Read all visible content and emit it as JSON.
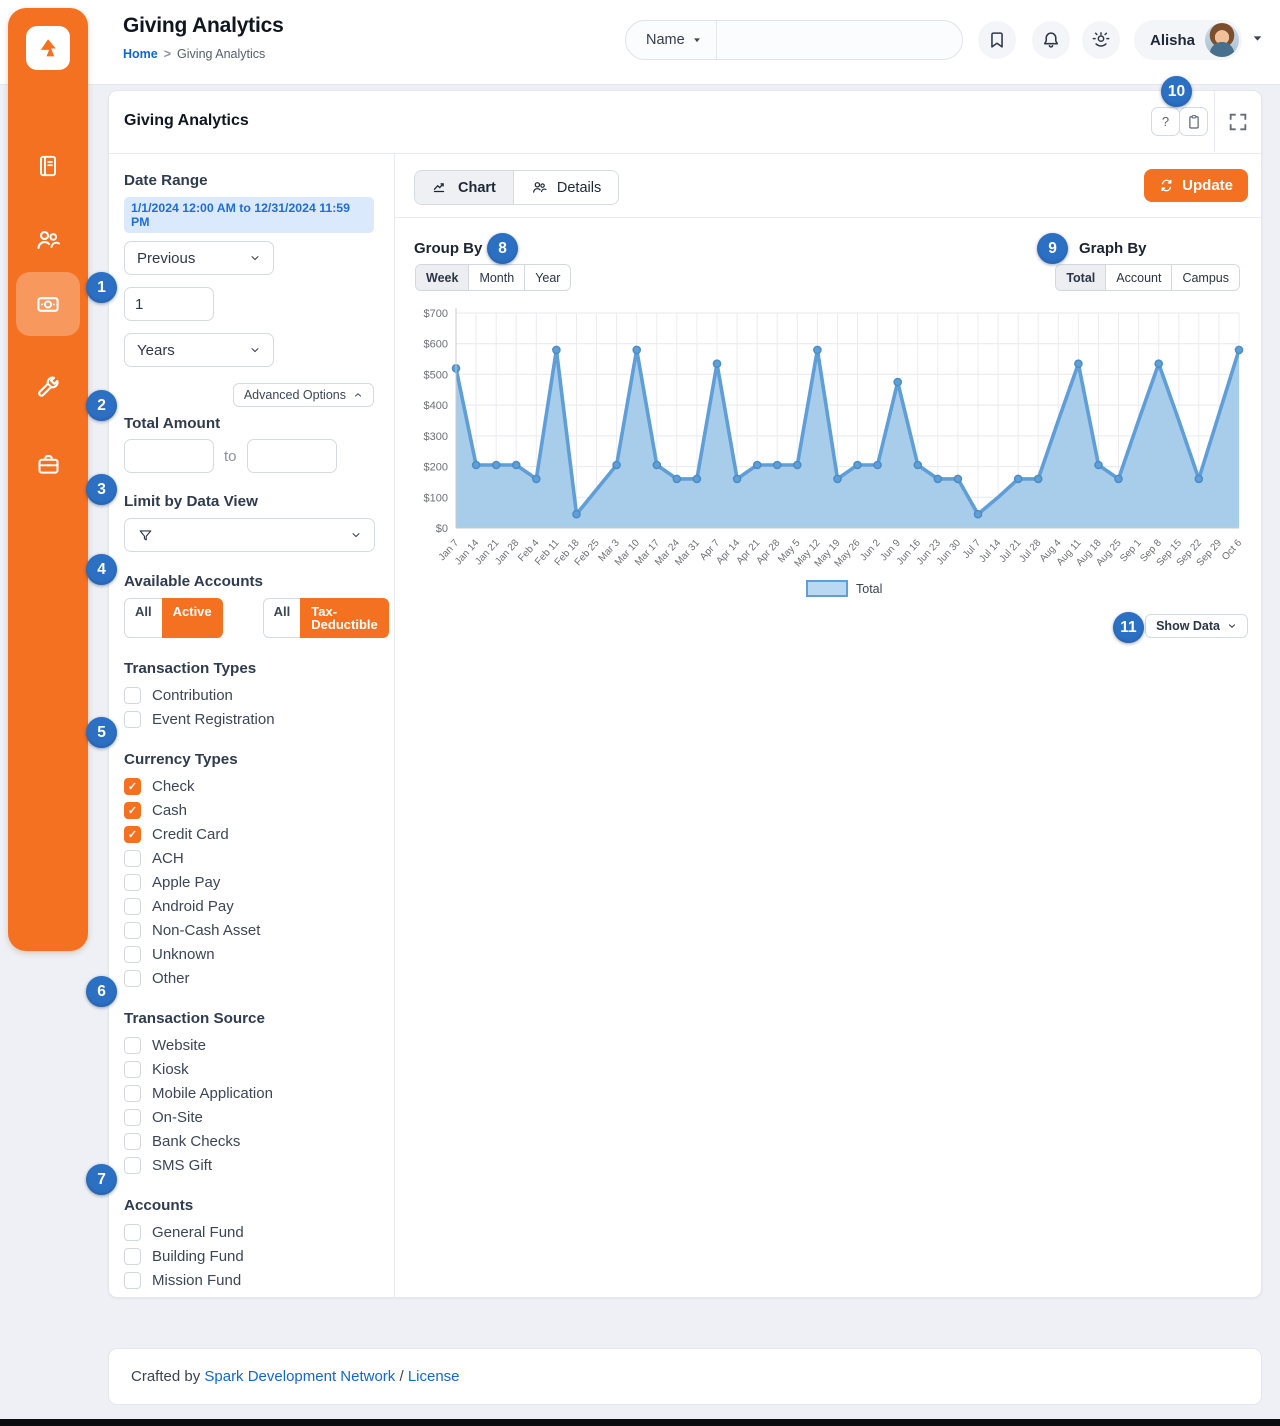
{
  "page": {
    "title": "Giving Analytics",
    "breadcrumb": {
      "home": "Home",
      "separator": ">",
      "current": "Giving Analytics"
    }
  },
  "topbar": {
    "search_category": "Name",
    "search_value": "",
    "user_name": "Alisha",
    "icons": [
      "bookmark-icon",
      "bell-icon",
      "theme-sun-icon",
      "caret-down-icon"
    ]
  },
  "sidebar": {
    "items": [
      {
        "icon": "book-icon",
        "active": false
      },
      {
        "icon": "people-icon",
        "active": false
      },
      {
        "icon": "money-bill-icon",
        "active": true
      },
      {
        "icon": "wrench-icon",
        "active": false
      },
      {
        "icon": "briefcase-icon",
        "active": false
      }
    ]
  },
  "panel": {
    "title": "Giving Analytics",
    "help_label": "?",
    "header_icons": [
      "help-button",
      "clipboard-icon",
      "fullscreen-icon"
    ]
  },
  "filters": {
    "date_range": {
      "label": "Date Range",
      "summary": "1/1/2024 12:00 AM to 12/31/2024 11:59 PM",
      "sliding_type": "Previous",
      "number": "1",
      "unit": "Years",
      "advanced_options_label": "Advanced Options"
    },
    "total_amount": {
      "label": "Total Amount",
      "to_label": "to",
      "min": "",
      "max": ""
    },
    "data_view": {
      "label": "Limit by Data View",
      "value": ""
    },
    "available_accounts": {
      "label": "Available Accounts",
      "toggles": [
        {
          "off": "All",
          "on": "Active"
        },
        {
          "off": "All",
          "on": "Tax-Deductible"
        }
      ]
    },
    "transaction_types": {
      "label": "Transaction Types",
      "options": [
        {
          "label": "Contribution",
          "checked": false
        },
        {
          "label": "Event Registration",
          "checked": false
        }
      ]
    },
    "currency_types": {
      "label": "Currency Types",
      "options": [
        {
          "label": "Check",
          "checked": true
        },
        {
          "label": "Cash",
          "checked": true
        },
        {
          "label": "Credit Card",
          "checked": true
        },
        {
          "label": "ACH",
          "checked": false
        },
        {
          "label": "Apple Pay",
          "checked": false
        },
        {
          "label": "Android Pay",
          "checked": false
        },
        {
          "label": "Non-Cash Asset",
          "checked": false
        },
        {
          "label": "Unknown",
          "checked": false
        },
        {
          "label": "Other",
          "checked": false
        }
      ]
    },
    "transaction_source": {
      "label": "Transaction Source",
      "options": [
        {
          "label": "Website",
          "checked": false
        },
        {
          "label": "Kiosk",
          "checked": false
        },
        {
          "label": "Mobile Application",
          "checked": false
        },
        {
          "label": "On-Site",
          "checked": false
        },
        {
          "label": "Bank Checks",
          "checked": false
        },
        {
          "label": "SMS Gift",
          "checked": false
        }
      ]
    },
    "accounts": {
      "label": "Accounts",
      "options": [
        {
          "label": "General Fund",
          "checked": false
        },
        {
          "label": "Building Fund",
          "checked": false
        },
        {
          "label": "Mission Fund",
          "checked": false
        }
      ]
    }
  },
  "chart_panel": {
    "tabs": [
      {
        "label": "Chart",
        "active": true
      },
      {
        "label": "Details",
        "active": false
      }
    ],
    "update_label": "Update",
    "group_by": {
      "label": "Group By",
      "options": [
        "Week",
        "Month",
        "Year"
      ],
      "selected": "Week"
    },
    "graph_by": {
      "label": "Graph By",
      "options": [
        "Total",
        "Account",
        "Campus"
      ],
      "selected": "Total"
    },
    "show_data_label": "Show Data"
  },
  "chart_data": {
    "type": "area",
    "title": "",
    "xlabel": "",
    "ylabel": "",
    "ylim": [
      0,
      700
    ],
    "ytick_step": 100,
    "yticks": [
      "$0",
      "$100",
      "$200",
      "$300",
      "$400",
      "$500",
      "$600",
      "$700"
    ],
    "grid": true,
    "legend_position": "bottom",
    "line_color": "#5f9ed6",
    "fill_color": "#a8cdeb",
    "categories": [
      "Jan 7",
      "Jan 14",
      "Jan 21",
      "Jan 28",
      "Feb 4",
      "Feb 11",
      "Feb 18",
      "Feb 25",
      "Mar 3",
      "Mar 10",
      "Mar 17",
      "Mar 24",
      "Mar 31",
      "Apr 7",
      "Apr 14",
      "Apr 21",
      "Apr 28",
      "May 5",
      "May 12",
      "May 19",
      "May 26",
      "Jun 2",
      "Jun 9",
      "Jun 16",
      "Jun 23",
      "Jun 30",
      "Jul 7",
      "Jul 14",
      "Jul 21",
      "Jul 28",
      "Aug 4",
      "Aug 11",
      "Aug 18",
      "Aug 25",
      "Sep 1",
      "Sep 8",
      "Sep 15",
      "Sep 22",
      "Sep 29",
      "Oct 6"
    ],
    "series": [
      {
        "name": "Total",
        "values": [
          520,
          205,
          205,
          205,
          160,
          580,
          45,
          125,
          205,
          580,
          205,
          160,
          160,
          535,
          160,
          205,
          205,
          205,
          580,
          160,
          205,
          205,
          475,
          205,
          160,
          160,
          45,
          100,
          160,
          160,
          350,
          535,
          205,
          160,
          350,
          535,
          350,
          160,
          370,
          580
        ],
        "markers": [
          1,
          1,
          1,
          1,
          1,
          1,
          1,
          0,
          1,
          1,
          1,
          1,
          1,
          1,
          1,
          1,
          1,
          1,
          1,
          1,
          1,
          1,
          1,
          1,
          1,
          1,
          1,
          0,
          1,
          1,
          0,
          1,
          1,
          1,
          0,
          1,
          0,
          1,
          0,
          1
        ]
      }
    ]
  },
  "annotations": [
    "1",
    "2",
    "3",
    "4",
    "5",
    "6",
    "7",
    "8",
    "9",
    "10",
    "11"
  ],
  "footer": {
    "prefix": "Crafted by",
    "link1": "Spark Development Network",
    "separator": "/",
    "link2": "License"
  },
  "colors": {
    "accent_orange": "#f47122",
    "annotation_blue": "#2c70c4",
    "link_blue": "#1166d8",
    "chart_line": "#5f9ed6",
    "chart_fill": "#a8cdeb",
    "date_pill_bg": "#dbe9fc",
    "date_pill_text": "#1e6ed8"
  }
}
